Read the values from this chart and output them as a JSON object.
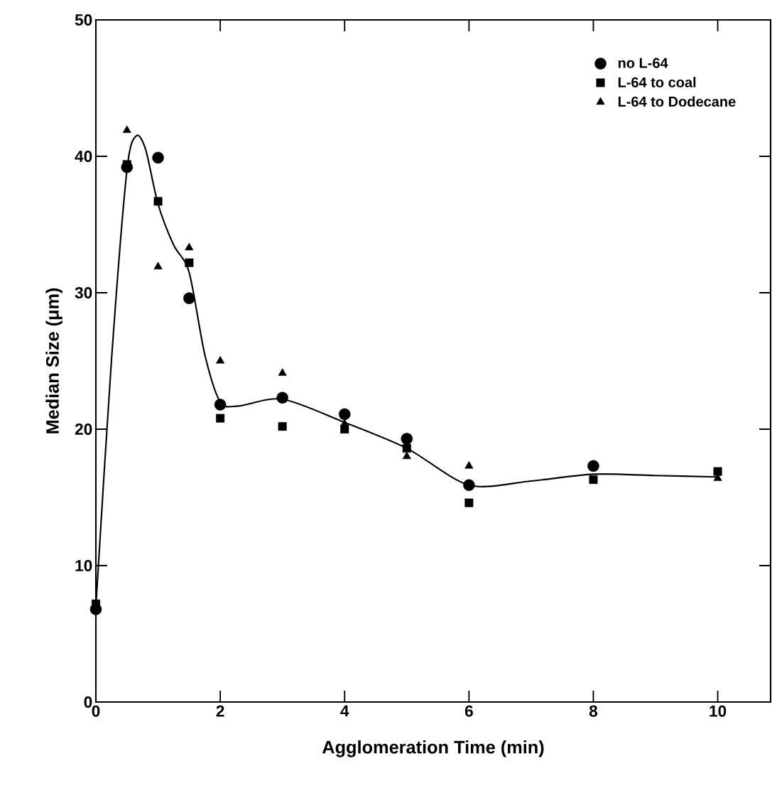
{
  "chart_data": {
    "type": "scatter",
    "xlabel": "Agglomeration Time (min)",
    "ylabel": "Median Size (μm)",
    "xlim": [
      0,
      10.85
    ],
    "ylim": [
      0,
      50
    ],
    "xticks": [
      0,
      2,
      4,
      6,
      8,
      10
    ],
    "yticks": [
      0,
      10,
      20,
      30,
      40,
      50
    ],
    "legend": "top right",
    "grid": false,
    "series": [
      {
        "name": "no L-64",
        "color": "#000000",
        "marker": "circle",
        "x": [
          0,
          0.5,
          1,
          1.5,
          2,
          3,
          4,
          5,
          6,
          8
        ],
        "values": [
          6.8,
          39.2,
          39.9,
          29.6,
          21.8,
          22.3,
          21.1,
          19.3,
          15.9,
          17.3
        ]
      },
      {
        "name": "L-64 to coal",
        "color": "#000000",
        "marker": "square",
        "x": [
          0,
          0.5,
          1,
          1.5,
          2,
          3,
          4,
          5,
          6,
          8,
          10
        ],
        "values": [
          7.2,
          39.4,
          36.7,
          32.2,
          20.8,
          20.2,
          20.0,
          18.6,
          14.6,
          16.3,
          16.9
        ]
      },
      {
        "name": "L-64 to Dodecane",
        "color": "#000000",
        "marker": "triangle",
        "x": [
          0.5,
          1,
          1.5,
          2,
          3,
          4,
          5,
          6,
          10
        ],
        "values": [
          41.9,
          31.9,
          33.3,
          25.0,
          24.1,
          20.4,
          18.0,
          17.3,
          16.4
        ]
      },
      {
        "type": "line",
        "color": "#000000",
        "marker": "none",
        "line_style": "solid",
        "x": [
          0,
          0.25,
          0.5,
          0.65,
          0.8,
          1,
          1.25,
          1.5,
          1.75,
          2,
          2.3,
          3,
          4,
          5,
          6,
          7,
          8,
          9,
          10
        ],
        "values": [
          7,
          25,
          39,
          41.5,
          40.5,
          36.5,
          33.5,
          31.5,
          25.5,
          22,
          21.7,
          22.2,
          20.5,
          18.6,
          15.9,
          16.2,
          16.7,
          16.6,
          16.5
        ]
      }
    ]
  }
}
